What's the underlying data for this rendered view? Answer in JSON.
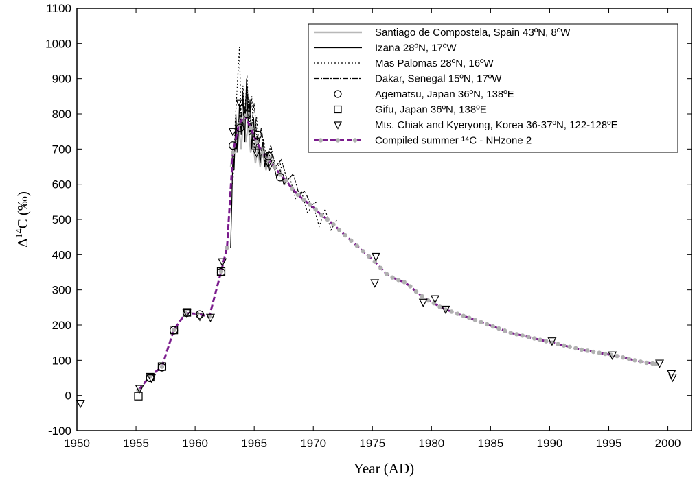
{
  "chart_data": {
    "type": "scatter",
    "title": "",
    "xlabel": "Year (AD)",
    "ylabel_prefix": "Δ",
    "ylabel_sup": "14",
    "ylabel_suffix": "C (‰)",
    "xlim": [
      1950,
      2002
    ],
    "ylim": [
      -100,
      1100
    ],
    "xticks": [
      1950,
      1955,
      1960,
      1965,
      1970,
      1975,
      1980,
      1985,
      1990,
      1995,
      2000
    ],
    "yticks": [
      -100,
      0,
      100,
      200,
      300,
      400,
      500,
      600,
      700,
      800,
      900,
      1000,
      1100
    ],
    "grid": false,
    "legend_position": "top-right",
    "series": [
      {
        "name": "Santiago de Compostela, Spain 43ºN, 8ºW",
        "style": "line",
        "color": "#b8b8b8",
        "dash": "",
        "x": [
          1963.0,
          1963.3,
          1963.5,
          1963.7,
          1963.9,
          1964.1,
          1964.3,
          1964.5,
          1964.7,
          1964.9,
          1965.1,
          1965.3,
          1965.5,
          1965.7,
          1966.0,
          1966.3,
          1966.6
        ],
        "y": [
          650,
          720,
          690,
          760,
          700,
          790,
          720,
          770,
          690,
          720,
          660,
          700,
          650,
          690,
          640,
          680,
          650
        ]
      },
      {
        "name": "Izana 28ºN, 17ºW",
        "style": "line",
        "color": "#000000",
        "dash": "",
        "x": [
          1963.0,
          1963.1,
          1963.2,
          1963.3,
          1963.45,
          1963.6,
          1963.75,
          1963.9,
          1964.05,
          1964.2,
          1964.35,
          1964.5,
          1964.65,
          1964.8,
          1964.95,
          1965.1,
          1965.3,
          1965.5,
          1965.7,
          1965.9,
          1966.1,
          1966.3,
          1966.6,
          1966.9,
          1967.2,
          1967.5,
          1967.8
        ],
        "y": [
          420,
          540,
          700,
          640,
          800,
          690,
          830,
          740,
          860,
          720,
          900,
          760,
          840,
          700,
          790,
          690,
          740,
          660,
          720,
          650,
          690,
          640,
          660,
          620,
          640,
          600,
          610
        ]
      },
      {
        "name": "Mas Palomas 28ºN, 16ºW",
        "style": "line",
        "color": "#000000",
        "dash": "2,3",
        "x": [
          1963.2,
          1963.4,
          1963.6,
          1963.75,
          1963.9,
          1964.05,
          1964.2,
          1964.4,
          1964.6,
          1964.8,
          1965.0,
          1965.2,
          1965.5,
          1965.8,
          1966.1,
          1966.4,
          1966.8,
          1967.2,
          1967.6,
          1968.0,
          1968.5,
          1969.0,
          1969.5,
          1970.0,
          1970.5,
          1971.0,
          1971.5,
          1972.0
        ],
        "y": [
          600,
          780,
          900,
          990,
          760,
          880,
          800,
          910,
          740,
          850,
          700,
          790,
          680,
          730,
          650,
          700,
          640,
          660,
          600,
          620,
          560,
          580,
          520,
          540,
          480,
          530,
          470,
          500
        ]
      },
      {
        "name": "Dakar, Senegal 15ºN, 17ºW",
        "style": "line",
        "color": "#000000",
        "dash": "8,2,2,2",
        "x": [
          1963.5,
          1963.8,
          1964.1,
          1964.4,
          1964.7,
          1965.0,
          1965.3,
          1965.6,
          1966.0,
          1966.4,
          1966.8,
          1967.3,
          1967.8,
          1968.3,
          1968.8,
          1969.3,
          1969.8,
          1970.3
        ],
        "y": [
          700,
          820,
          760,
          880,
          740,
          830,
          700,
          760,
          660,
          710,
          650,
          670,
          610,
          630,
          570,
          580,
          540,
          550
        ]
      },
      {
        "name": "Agematsu, Japan 36ºN, 138ºE",
        "style": "marker",
        "marker": "circle",
        "color": "#000000",
        "x": [
          1956.2,
          1957.2,
          1958.2,
          1959.3,
          1960.4,
          1962.2,
          1963.2,
          1963.8,
          1964.4,
          1965.3,
          1966.2,
          1967.2
        ],
        "y": [
          50,
          80,
          185,
          235,
          230,
          350,
          710,
          760,
          800,
          740,
          680,
          620
        ]
      },
      {
        "name": "Gifu, Japan 36ºN, 138ºE",
        "style": "marker",
        "marker": "square",
        "color": "#000000",
        "x": [
          1955.2,
          1956.2,
          1957.2,
          1958.2,
          1959.3,
          1962.2
        ],
        "y": [
          -2,
          52,
          82,
          186,
          236,
          352
        ]
      },
      {
        "name": "Mts. Chiak and Kyeryong, Korea 36-37ºN, 122-128ºE",
        "style": "marker",
        "marker": "triangle",
        "color": "#000000",
        "x": [
          1950.3,
          1955.3,
          1956.3,
          1959.3,
          1960.4,
          1961.3,
          1962.3,
          1963.2,
          1963.8,
          1964.3,
          1965.2,
          1966.2,
          1975.2,
          1975.3,
          1979.3,
          1980.3,
          1981.2,
          1990.2,
          1995.3,
          1999.3,
          2000.3,
          2000.4
        ],
        "y": [
          -22,
          20,
          50,
          235,
          225,
          222,
          380,
          750,
          830,
          820,
          690,
          660,
          320,
          395,
          265,
          275,
          245,
          155,
          115,
          92,
          62,
          52
        ]
      },
      {
        "name": "Compiled summer ¹⁴C - NHzone 2",
        "style": "line-dots",
        "color": "#7a1a8c",
        "dot_color": "#b0b0b0",
        "dash": "8,4",
        "x": [
          1955.2,
          1956.2,
          1957.2,
          1958.2,
          1959.2,
          1960.2,
          1961.2,
          1962.2,
          1962.7,
          1963.2,
          1963.7,
          1964.2,
          1964.7,
          1965.2,
          1965.7,
          1966.2,
          1966.7,
          1967.2,
          1967.7,
          1968.2,
          1968.7,
          1969.2,
          1969.7,
          1970.2,
          1970.7,
          1971.2,
          1971.7,
          1972.2,
          1972.7,
          1973.2,
          1973.7,
          1974.2,
          1974.7,
          1975.2,
          1975.7,
          1976.2,
          1976.7,
          1977.2,
          1977.7,
          1978.2,
          1978.7,
          1979.2,
          1979.7,
          1980.2,
          1980.7,
          1981.2,
          1981.7,
          1982.2,
          1982.7,
          1983.2,
          1983.7,
          1984.2,
          1984.7,
          1985.2,
          1985.7,
          1986.2,
          1986.7,
          1987.2,
          1987.7,
          1988.2,
          1988.7,
          1989.2,
          1989.7,
          1990.2,
          1990.7,
          1991.2,
          1991.7,
          1992.2,
          1992.7,
          1993.2,
          1993.7,
          1994.2,
          1994.7,
          1995.2,
          1995.7,
          1996.2,
          1996.7,
          1997.2,
          1997.7,
          1998.2,
          1998.7,
          1999.0
        ],
        "y": [
          15,
          55,
          82,
          186,
          234,
          232,
          224,
          352,
          420,
          690,
          770,
          795,
          760,
          720,
          690,
          670,
          650,
          628,
          610,
          588,
          570,
          556,
          542,
          528,
          512,
          500,
          486,
          470,
          455,
          440,
          425,
          410,
          395,
          380,
          362,
          345,
          335,
          328,
          322,
          310,
          295,
          282,
          270,
          262,
          252,
          244,
          238,
          232,
          226,
          220,
          214,
          208,
          202,
          196,
          190,
          184,
          178,
          174,
          170,
          166,
          162,
          158,
          154,
          150,
          146,
          142,
          138,
          134,
          130,
          127,
          124,
          121,
          118,
          115,
          112,
          108,
          104,
          100,
          96,
          93,
          91,
          90
        ]
      }
    ]
  }
}
